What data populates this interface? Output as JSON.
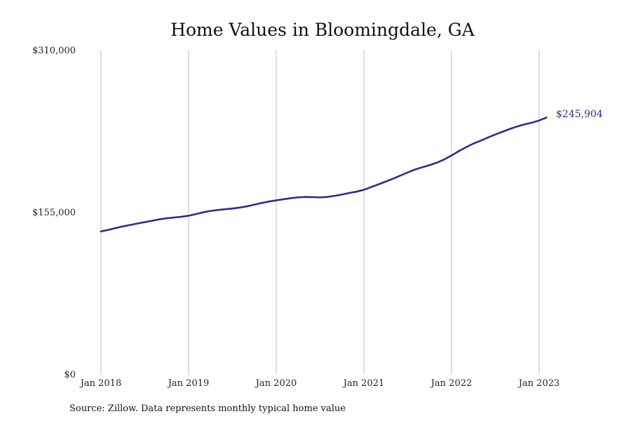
{
  "chart_data": {
    "type": "line",
    "title": "Home Values in Bloomingdale, GA",
    "xlabel": "",
    "ylabel": "",
    "x_tick_labels": [
      "Jan 2018",
      "Jan 2019",
      "Jan 2020",
      "Jan 2021",
      "Jan 2022",
      "Jan 2023"
    ],
    "y_tick_labels": [
      "$0",
      "$155,000",
      "$310,000"
    ],
    "y_ticks": [
      0,
      155000,
      310000
    ],
    "ylim": [
      0,
      310000
    ],
    "x_range": [
      "2018-01",
      "2023-02"
    ],
    "grid": {
      "vertical": true,
      "horizontal": false
    },
    "legend": "none",
    "end_label": "$245,904",
    "colors": {
      "line": "#2e2e8a",
      "grid": "#bdbdbd"
    },
    "series": [
      {
        "x": [
          "2018-01",
          "2018-02",
          "2018-03",
          "2018-04",
          "2018-05",
          "2018-06",
          "2018-07",
          "2018-08",
          "2018-09",
          "2018-10",
          "2018-11",
          "2018-12",
          "2019-01",
          "2019-02",
          "2019-03",
          "2019-04",
          "2019-05",
          "2019-06",
          "2019-07",
          "2019-08",
          "2019-09",
          "2019-10",
          "2019-11",
          "2019-12",
          "2020-01",
          "2020-02",
          "2020-03",
          "2020-04",
          "2020-05",
          "2020-06",
          "2020-07",
          "2020-08",
          "2020-09",
          "2020-10",
          "2020-11",
          "2020-12",
          "2021-01",
          "2021-02",
          "2021-03",
          "2021-04",
          "2021-05",
          "2021-06",
          "2021-07",
          "2021-08",
          "2021-09",
          "2021-10",
          "2021-11",
          "2021-12",
          "2022-01",
          "2022-02",
          "2022-03",
          "2022-04",
          "2022-05",
          "2022-06",
          "2022-07",
          "2022-08",
          "2022-09",
          "2022-10",
          "2022-11",
          "2022-12",
          "2023-01",
          "2023-02"
        ],
        "values": [
          137000,
          138500,
          140200,
          141800,
          143200,
          144600,
          145900,
          147200,
          148600,
          149600,
          150300,
          151000,
          152000,
          153600,
          155300,
          156600,
          157500,
          158200,
          158900,
          159800,
          161000,
          162600,
          164200,
          165600,
          166700,
          167800,
          168800,
          169600,
          170000,
          169800,
          169600,
          170000,
          171000,
          172300,
          173800,
          175000,
          176800,
          179400,
          182000,
          184700,
          187400,
          190400,
          193400,
          196200,
          198400,
          200400,
          202800,
          205800,
          209600,
          213800,
          217600,
          221000,
          223800,
          226800,
          229700,
          232400,
          235000,
          237400,
          239400,
          241000,
          243100,
          245904
        ]
      }
    ]
  },
  "footer": {
    "source": "Source: Zillow. Data represents monthly typical home value"
  }
}
